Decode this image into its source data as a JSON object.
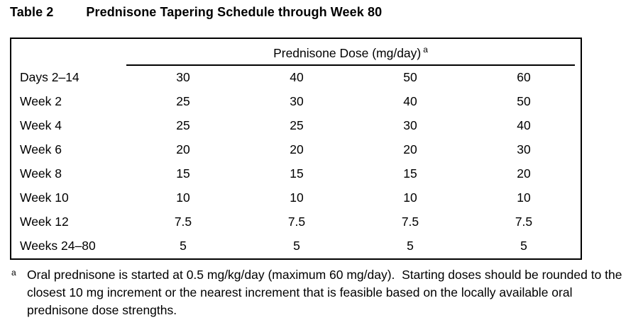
{
  "title": {
    "label": "Table 2",
    "text": "Prednisone Tapering Schedule through Week 80"
  },
  "table": {
    "header": {
      "text": "Prednisone Dose (mg/day)",
      "footnote_marker": "a"
    },
    "rows": [
      {
        "label": "Days 2–14",
        "values": [
          "30",
          "40",
          "50",
          "60"
        ]
      },
      {
        "label": "Week 2",
        "values": [
          "25",
          "30",
          "40",
          "50"
        ]
      },
      {
        "label": "Week 4",
        "values": [
          "25",
          "25",
          "30",
          "40"
        ]
      },
      {
        "label": "Week 6",
        "values": [
          "20",
          "20",
          "20",
          "30"
        ]
      },
      {
        "label": "Week 8",
        "values": [
          "15",
          "15",
          "15",
          "20"
        ]
      },
      {
        "label": "Week 10",
        "values": [
          "10",
          "10",
          "10",
          "10"
        ]
      },
      {
        "label": "Week 12",
        "values": [
          "7.5",
          "7.5",
          "7.5",
          "7.5"
        ]
      },
      {
        "label": "Weeks 24–80",
        "values": [
          "5",
          "5",
          "5",
          "5"
        ]
      }
    ]
  },
  "footnote": {
    "marker": "a",
    "text": "Oral prednisone is started at 0.5 mg/kg/day (maximum 60 mg/day).  Starting doses should be rounded to the closest 10 mg increment or the nearest increment that is feasible based on the locally available oral prednisone dose strengths."
  },
  "colors": {
    "text": "#000000",
    "background": "#ffffff",
    "border": "#000000"
  }
}
